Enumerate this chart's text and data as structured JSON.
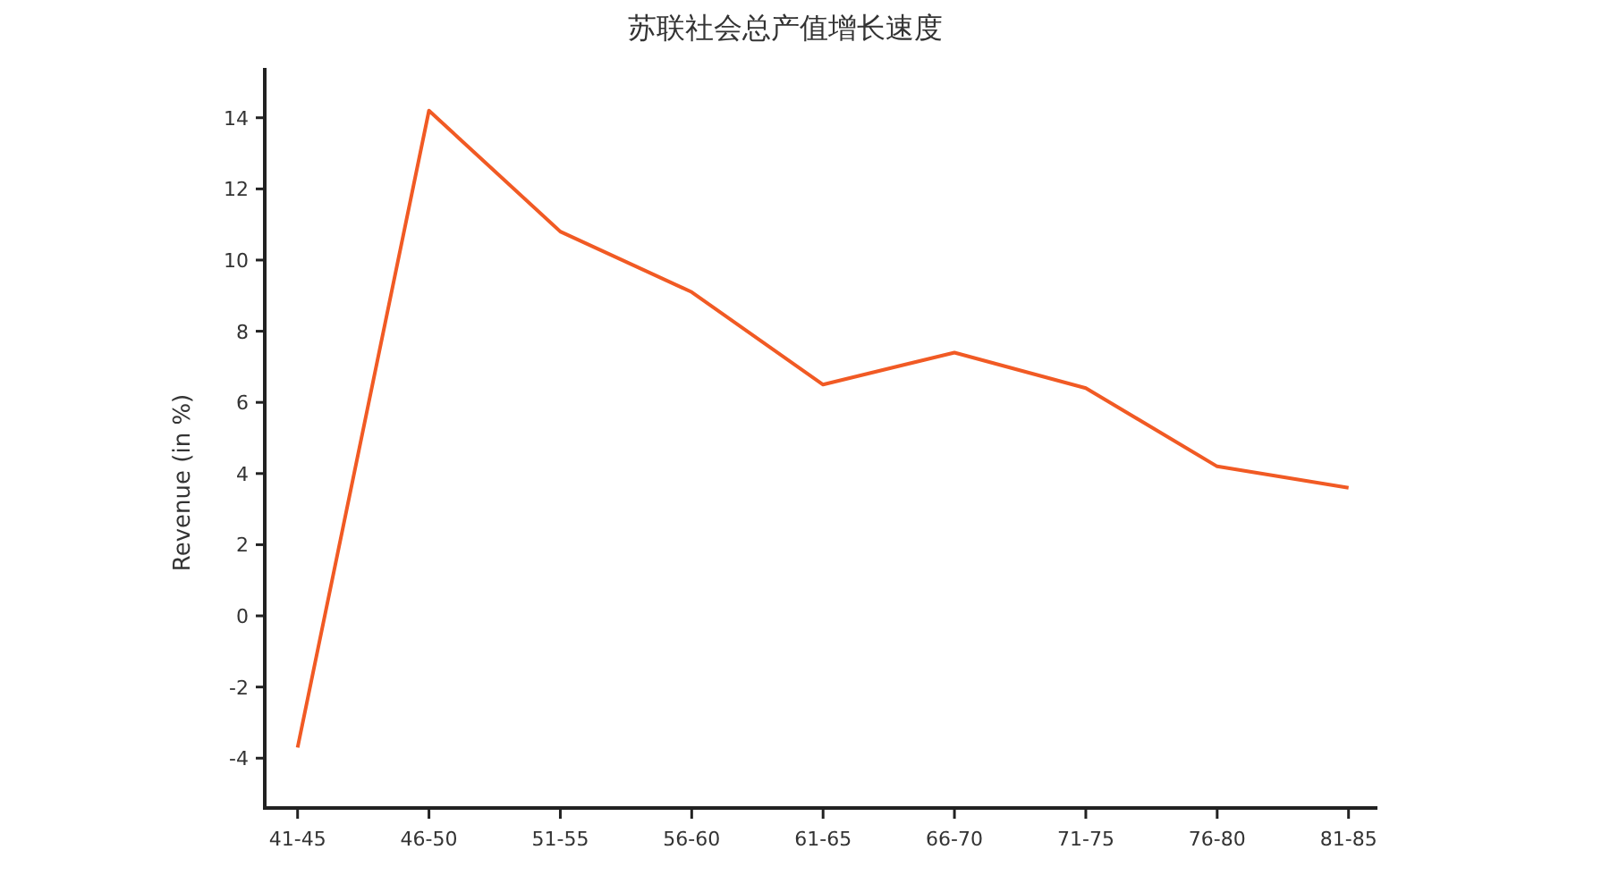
{
  "chart_data": {
    "type": "line",
    "title": "苏联社会总产值增长速度",
    "ylabel": "Revenue (in %)",
    "categories": [
      "41-45",
      "46-50",
      "51-55",
      "56-60",
      "61-65",
      "66-70",
      "71-75",
      "76-80",
      "81-85"
    ],
    "values": [
      -3.7,
      14.2,
      10.8,
      9.1,
      6.5,
      7.4,
      6.4,
      4.2,
      3.6
    ],
    "color": "#f15a24",
    "ylim": [
      -5.4,
      15.4
    ],
    "yticks": [
      -4,
      -2,
      0,
      2,
      4,
      6,
      8,
      10,
      12,
      14
    ],
    "grid": false,
    "legend": false,
    "marker": "none"
  }
}
